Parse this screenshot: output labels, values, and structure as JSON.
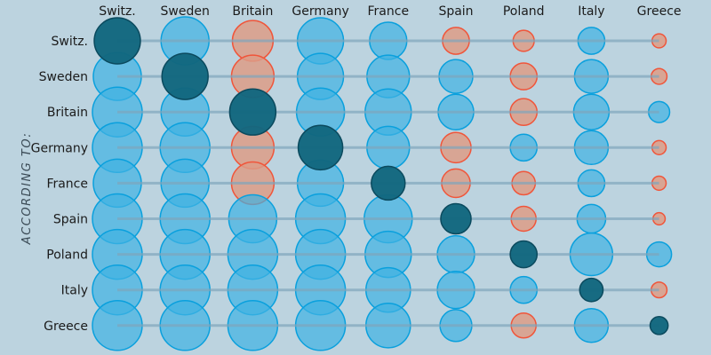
{
  "chart_data": {
    "type": "scatter",
    "subtype": "bubble-matrix",
    "ylabel": "ACCORDING TO:",
    "columns": [
      "Switz.",
      "Sweden",
      "Britain",
      "Germany",
      "France",
      "Spain",
      "Poland",
      "Italy",
      "Greece"
    ],
    "rows": [
      "Switz.",
      "Sweden",
      "Britain",
      "Germany",
      "France",
      "Spain",
      "Poland",
      "Italy",
      "Greece"
    ],
    "size_scale": "relative area, 0-100",
    "values": [
      [
        86,
        93,
        67,
        86,
        56,
        29,
        18,
        29,
        8
      ],
      [
        93,
        86,
        73,
        86,
        73,
        46,
        29,
        46,
        10
      ],
      [
        100,
        93,
        86,
        93,
        86,
        51,
        29,
        51,
        18
      ],
      [
        100,
        100,
        73,
        80,
        73,
        37,
        29,
        46,
        8
      ],
      [
        93,
        93,
        73,
        86,
        46,
        33,
        22,
        29,
        8
      ],
      [
        100,
        100,
        93,
        100,
        93,
        37,
        25,
        33,
        6
      ],
      [
        100,
        100,
        100,
        100,
        86,
        56,
        29,
        73,
        25
      ],
      [
        100,
        100,
        100,
        100,
        80,
        56,
        29,
        22,
        10
      ],
      [
        100,
        100,
        100,
        100,
        80,
        41,
        25,
        46,
        13
      ]
    ],
    "types": [
      [
        "s",
        "p",
        "n",
        "p",
        "p",
        "n",
        "n",
        "p",
        "n"
      ],
      [
        "p",
        "s",
        "n",
        "p",
        "p",
        "p",
        "n",
        "p",
        "n"
      ],
      [
        "p",
        "p",
        "s",
        "p",
        "p",
        "p",
        "n",
        "p",
        "p"
      ],
      [
        "p",
        "p",
        "n",
        "s",
        "p",
        "n",
        "p",
        "p",
        "n"
      ],
      [
        "p",
        "p",
        "n",
        "p",
        "s",
        "n",
        "n",
        "p",
        "n"
      ],
      [
        "p",
        "p",
        "p",
        "p",
        "p",
        "s",
        "n",
        "p",
        "n"
      ],
      [
        "p",
        "p",
        "p",
        "p",
        "p",
        "p",
        "s",
        "p",
        "p"
      ],
      [
        "p",
        "p",
        "p",
        "p",
        "p",
        "p",
        "p",
        "s",
        "n"
      ],
      [
        "p",
        "p",
        "p",
        "p",
        "p",
        "p",
        "n",
        "p",
        "s"
      ]
    ],
    "type_legend": {
      "s": "self",
      "p": "positive",
      "n": "negative"
    },
    "colors": {
      "background": "#bcd3df",
      "positive_fill": "#3fb2e2",
      "positive_stroke": "#0aa0dd",
      "negative_fill": "#dd9c87",
      "negative_stroke": "#f0553a",
      "self_fill": "#12677f",
      "self_stroke": "#0b4a5e",
      "line": "#7fa6bc"
    },
    "grid": false,
    "legend": "none"
  }
}
